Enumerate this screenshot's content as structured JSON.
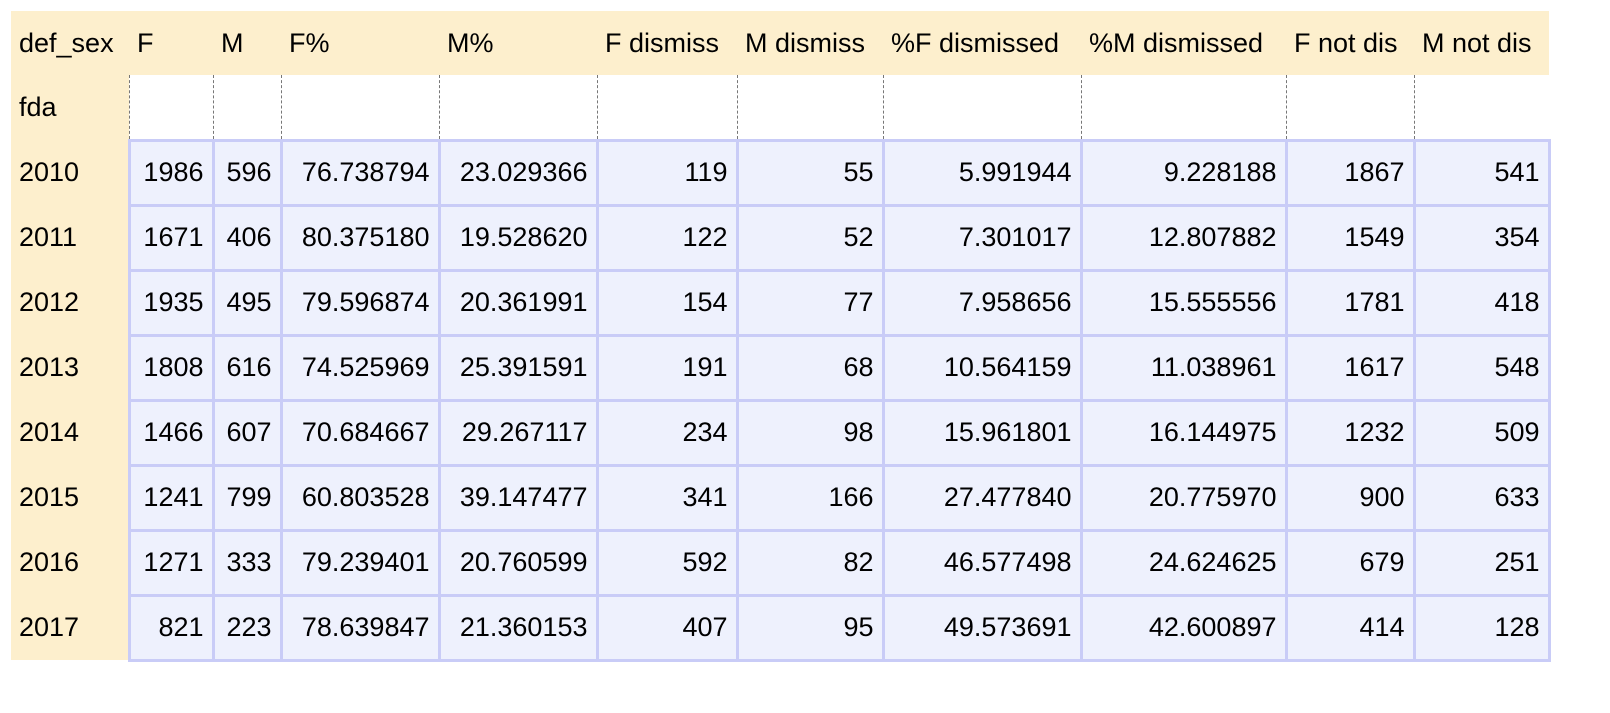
{
  "table": {
    "index_name": "def_sex",
    "row_index_label": "fda",
    "columns": [
      "F",
      "M",
      "F%",
      "M%",
      "F dismiss",
      "M dismiss",
      "%F dismissed",
      "%M dismissed",
      "F not dis",
      "M not dis"
    ],
    "rows": [
      {
        "year": "2010",
        "values": [
          "1986",
          "596",
          "76.738794",
          "23.029366",
          "119",
          "55",
          "5.991944",
          "9.228188",
          "1867",
          "541"
        ]
      },
      {
        "year": "2011",
        "values": [
          "1671",
          "406",
          "80.375180",
          "19.528620",
          "122",
          "52",
          "7.301017",
          "12.807882",
          "1549",
          "354"
        ]
      },
      {
        "year": "2012",
        "values": [
          "1935",
          "495",
          "79.596874",
          "20.361991",
          "154",
          "77",
          "7.958656",
          "15.555556",
          "1781",
          "418"
        ]
      },
      {
        "year": "2013",
        "values": [
          "1808",
          "616",
          "74.525969",
          "25.391591",
          "191",
          "68",
          "10.564159",
          "11.038961",
          "1617",
          "548"
        ]
      },
      {
        "year": "2014",
        "values": [
          "1466",
          "607",
          "70.684667",
          "29.267117",
          "234",
          "98",
          "15.961801",
          "16.144975",
          "1232",
          "509"
        ]
      },
      {
        "year": "2015",
        "values": [
          "1241",
          "799",
          "60.803528",
          "39.147477",
          "341",
          "166",
          "27.477840",
          "20.775970",
          "900",
          "633"
        ]
      },
      {
        "year": "2016",
        "values": [
          "1271",
          "333",
          "79.239401",
          "20.760599",
          "592",
          "82",
          "46.577498",
          "24.624625",
          "679",
          "251"
        ]
      },
      {
        "year": "2017",
        "values": [
          "821",
          "223",
          "78.639847",
          "21.360153",
          "407",
          "95",
          "49.573691",
          "42.600897",
          "414",
          "128"
        ]
      }
    ]
  },
  "colors": {
    "header_bg": "#fdefcd",
    "cell_bg": "#eef1fd",
    "cell_border": "#c9ccf7"
  }
}
